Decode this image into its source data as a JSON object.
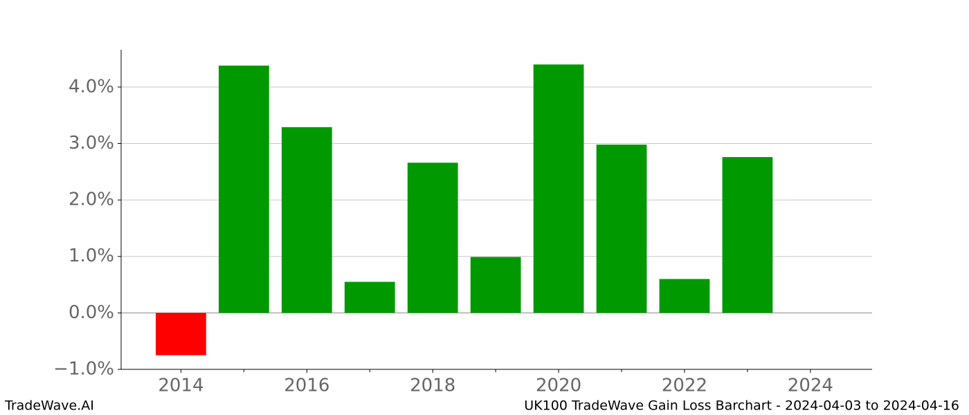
{
  "chart_data": {
    "type": "bar",
    "title": "UK100 TradeWave Gain Loss Barchart - 2024-04-03 to 2024-04-16",
    "brand": "TradeWave.AI",
    "x": [
      2014,
      2015,
      2016,
      2017,
      2018,
      2019,
      2020,
      2021,
      2022,
      2023
    ],
    "values": [
      -0.75,
      4.38,
      3.29,
      0.55,
      2.66,
      0.99,
      4.4,
      2.98,
      0.6,
      2.76
    ],
    "positive_color": "#009900",
    "negative_color": "#ff0000",
    "xlim": [
      2013.05,
      2024.98
    ],
    "xticks": [
      2014,
      2016,
      2018,
      2020,
      2022,
      2024
    ],
    "xminorticks": [
      2015,
      2017,
      2019,
      2021,
      2023
    ],
    "ylim": [
      -1.0,
      4.66
    ],
    "yticks": [
      {
        "value": -1,
        "label": "−1.0%"
      },
      {
        "value": 0,
        "label": "0.0%"
      },
      {
        "value": 1,
        "label": "1.0%"
      },
      {
        "value": 2,
        "label": "2.0%"
      },
      {
        "value": 3,
        "label": "3.0%"
      },
      {
        "value": 4,
        "label": "4.0%"
      }
    ],
    "grid": true
  }
}
